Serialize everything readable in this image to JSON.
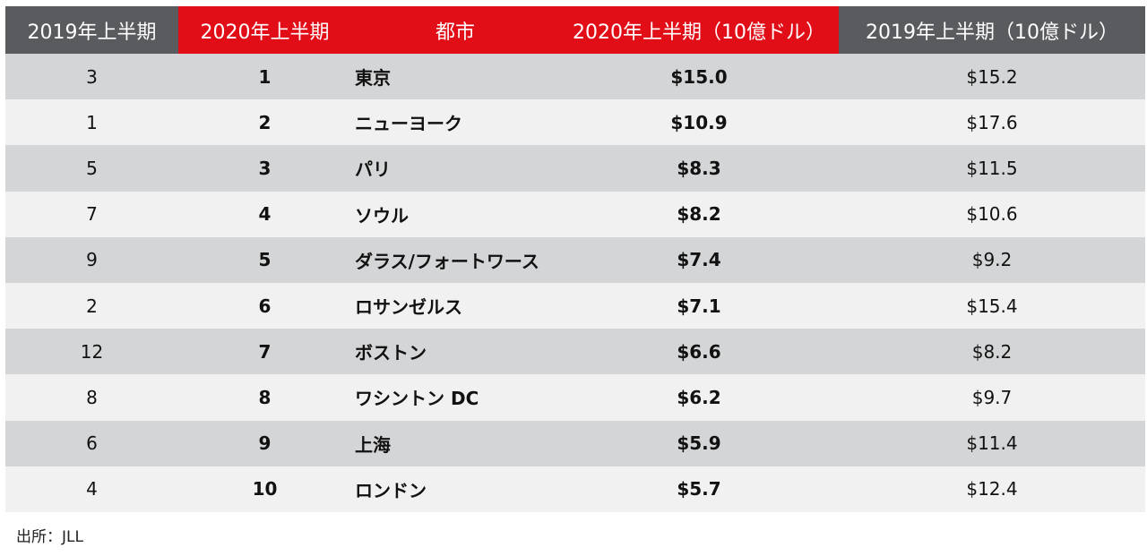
{
  "headers": [
    "2019年上半期",
    "2020年上半期",
    "都市",
    "2020年上半期（10億ドル）",
    "2019年上半期（10億ドル）"
  ],
  "header_colors": {
    "gray": "#5a5b5f",
    "red": "#e10d17"
  },
  "rows": [
    {
      "rank2019": "3",
      "rank2020": "1",
      "city": "東京",
      "v2020": "$15.0",
      "v2019": "$15.2"
    },
    {
      "rank2019": "1",
      "rank2020": "2",
      "city": "ニューヨーク",
      "v2020": "$10.9",
      "v2019": "$17.6"
    },
    {
      "rank2019": "5",
      "rank2020": "3",
      "city": "パリ",
      "v2020": "$8.3",
      "v2019": "$11.5"
    },
    {
      "rank2019": "7",
      "rank2020": "4",
      "city": "ソウル",
      "v2020": "$8.2",
      "v2019": "$10.6"
    },
    {
      "rank2019": "9",
      "rank2020": "5",
      "city": "ダラス/フォートワース",
      "v2020": "$7.4",
      "v2019": "$9.2"
    },
    {
      "rank2019": "2",
      "rank2020": "6",
      "city": "ロサンゼルス",
      "v2020": "$7.1",
      "v2019": "$15.4"
    },
    {
      "rank2019": "12",
      "rank2020": "7",
      "city": "ボストン",
      "v2020": "$6.6",
      "v2019": "$8.2"
    },
    {
      "rank2019": "8",
      "rank2020": "8",
      "city": "ワシントン DC",
      "v2020": "$6.2",
      "v2019": "$9.7"
    },
    {
      "rank2019": "6",
      "rank2020": "9",
      "city": "上海",
      "v2020": "$5.9",
      "v2019": "$11.4"
    },
    {
      "rank2019": "4",
      "rank2020": "10",
      "city": "ロンドン",
      "v2020": "$5.7",
      "v2019": "$12.4"
    }
  ],
  "source": "出所：JLL"
}
